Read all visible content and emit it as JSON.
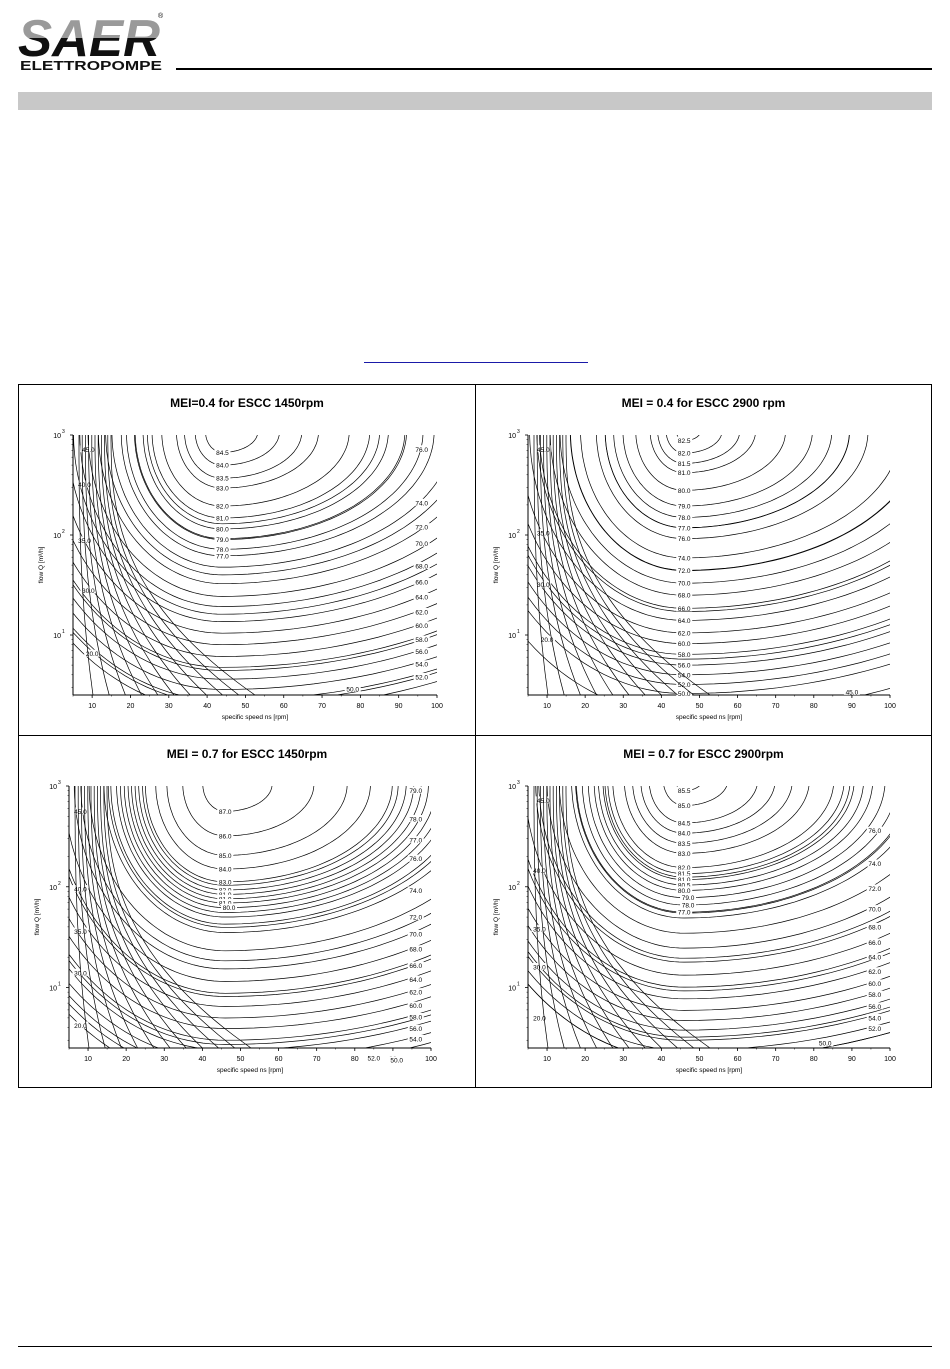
{
  "brand": {
    "name": "SAER",
    "sub": "ELETTROPOMPE",
    "reg_mark": "®",
    "colors": {
      "logo_top": "#9a9a9a",
      "logo_bottom": "#101010",
      "band": "#c8c8c8"
    }
  },
  "chart_data": [
    {
      "type": "line",
      "title": "MEI=0.4 for ESCC 1450rpm",
      "xlabel": "specific speed ns [rpm]",
      "ylabel": "flow Q [m³/h]",
      "xlim": [
        5,
        100
      ],
      "ylim_log10": [
        0.4,
        3.0
      ],
      "x_ticks": [
        "10",
        "20",
        "30",
        "40",
        "50",
        "60",
        "70",
        "80",
        "90",
        "100"
      ],
      "y_ticks": [
        {
          "base": "10",
          "exp": "1",
          "value": 10
        },
        {
          "base": "10",
          "exp": "2",
          "value": 100
        },
        {
          "base": "10",
          "exp": "3",
          "value": 1000
        }
      ],
      "optimum": {
        "ns": 44,
        "q": 1080
      },
      "contours": [
        {
          "label": "84.5",
          "ns": 44,
          "q": 670
        },
        {
          "label": "84.0",
          "ns": 44,
          "q": 500
        },
        {
          "label": "83.5",
          "ns": 44,
          "q": 370
        },
        {
          "label": "83.0",
          "ns": 44,
          "q": 295
        },
        {
          "label": "82.0",
          "ns": 44,
          "q": 195
        },
        {
          "label": "81.0",
          "ns": 44,
          "q": 148
        },
        {
          "label": "80.0",
          "ns": 44,
          "q": 115
        },
        {
          "label": "79.0",
          "ns": 44,
          "q": 90
        },
        {
          "label": "78.0",
          "ns": 44,
          "q": 72
        },
        {
          "label": "77.0",
          "ns": 44,
          "q": 62
        },
        {
          "label": "76.0",
          "ns": 96,
          "q": 720
        },
        {
          "label": "74.0",
          "ns": 96,
          "q": 210
        },
        {
          "label": "72.0",
          "ns": 96,
          "q": 120
        },
        {
          "label": "70.0",
          "ns": 96,
          "q": 82
        },
        {
          "label": "68.0",
          "ns": 96,
          "q": 49
        },
        {
          "label": "66.0",
          "ns": 96,
          "q": 34
        },
        {
          "label": "64.0",
          "ns": 96,
          "q": 24
        },
        {
          "label": "62.0",
          "ns": 96,
          "q": 17
        },
        {
          "label": "60.0",
          "ns": 96,
          "q": 12.5
        },
        {
          "label": "58.0",
          "ns": 96,
          "q": 9
        },
        {
          "label": "56.0",
          "ns": 96,
          "q": 6.8
        },
        {
          "label": "54.0",
          "ns": 96,
          "q": 5.1
        },
        {
          "label": "52.0",
          "ns": 96,
          "q": 3.8
        },
        {
          "label": "50.0",
          "ns": 78,
          "q": 2.9
        },
        {
          "label": "45.0",
          "ns": 9,
          "q": 720
        },
        {
          "label": "40.0",
          "ns": 8,
          "q": 320
        },
        {
          "label": "35.0",
          "ns": 8,
          "q": 88
        },
        {
          "label": "30.0",
          "ns": 9,
          "q": 28
        },
        {
          "label": "20.0",
          "ns": 10,
          "q": 6.5
        }
      ]
    },
    {
      "type": "line",
      "title": "MEI = 0.4 for ESCC 2900 rpm",
      "xlabel": "specific speed ns [rpm]",
      "ylabel": "flow Q [m³/h]",
      "xlim": [
        5,
        100
      ],
      "ylim_log10": [
        0.4,
        3.0
      ],
      "x_ticks": [
        "10",
        "20",
        "30",
        "40",
        "50",
        "60",
        "70",
        "80",
        "90",
        "100"
      ],
      "y_ticks": [
        {
          "base": "10",
          "exp": "1",
          "value": 10
        },
        {
          "base": "10",
          "exp": "2",
          "value": 100
        },
        {
          "base": "10",
          "exp": "3",
          "value": 1000
        }
      ],
      "optimum": {
        "ns": 46,
        "q": 1100
      },
      "contours": [
        {
          "label": "82.5",
          "ns": 46,
          "q": 880
        },
        {
          "label": "82.0",
          "ns": 46,
          "q": 660
        },
        {
          "label": "81.5",
          "ns": 46,
          "q": 520
        },
        {
          "label": "81.0",
          "ns": 46,
          "q": 420
        },
        {
          "label": "80.0",
          "ns": 46,
          "q": 280
        },
        {
          "label": "79.0",
          "ns": 46,
          "q": 195
        },
        {
          "label": "78.0",
          "ns": 46,
          "q": 150
        },
        {
          "label": "77.0",
          "ns": 46,
          "q": 118
        },
        {
          "label": "76.0",
          "ns": 46,
          "q": 92
        },
        {
          "label": "74.0",
          "ns": 46,
          "q": 59
        },
        {
          "label": "72.0",
          "ns": 46,
          "q": 44
        },
        {
          "label": "70.0",
          "ns": 46,
          "q": 33
        },
        {
          "label": "68.0",
          "ns": 46,
          "q": 25
        },
        {
          "label": "66.0",
          "ns": 46,
          "q": 18.5
        },
        {
          "label": "64.0",
          "ns": 46,
          "q": 14
        },
        {
          "label": "62.0",
          "ns": 46,
          "q": 10.5
        },
        {
          "label": "60.0",
          "ns": 46,
          "q": 8.2
        },
        {
          "label": "58.0",
          "ns": 46,
          "q": 6.4
        },
        {
          "label": "56.0",
          "ns": 46,
          "q": 5
        },
        {
          "label": "54.0",
          "ns": 46,
          "q": 4
        },
        {
          "label": "52.0",
          "ns": 46,
          "q": 3.2
        },
        {
          "label": "50.0",
          "ns": 46,
          "q": 2.6
        },
        {
          "label": "45.0",
          "ns": 90,
          "q": 2.7
        },
        {
          "label": "45.0",
          "ns": 9,
          "q": 720
        },
        {
          "label": "35.0",
          "ns": 9,
          "q": 105
        },
        {
          "label": "30.0",
          "ns": 9,
          "q": 32
        },
        {
          "label": "20.0",
          "ns": 10,
          "q": 9
        }
      ]
    },
    {
      "type": "line",
      "title": "MEI = 0.7 for ESCC 1450rpm",
      "xlabel": "specific speed ns [rpm]",
      "ylabel": "flow Q [m³/h]",
      "xlim": [
        5,
        100
      ],
      "ylim_log10": [
        0.4,
        3.0
      ],
      "x_ticks": [
        "10",
        "20",
        "30",
        "40",
        "50",
        "60",
        "70",
        "80",
        "90",
        "100"
      ],
      "y_ticks": [
        {
          "base": "10",
          "exp": "1",
          "value": 10
        },
        {
          "base": "10",
          "exp": "2",
          "value": 100
        },
        {
          "base": "10",
          "exp": "3",
          "value": 1000
        }
      ],
      "optimum": {
        "ns": 46,
        "q": 1050
      },
      "contours": [
        {
          "label": "87.0",
          "ns": 46,
          "q": 560
        },
        {
          "label": "86.0",
          "ns": 46,
          "q": 320
        },
        {
          "label": "85.0",
          "ns": 46,
          "q": 205
        },
        {
          "label": "84.0",
          "ns": 46,
          "q": 150
        },
        {
          "label": "83.0",
          "ns": 46,
          "q": 112
        },
        {
          "label": "82.0",
          "ns": 46,
          "q": 93
        },
        {
          "label": "81.0",
          "ns": 46,
          "q": 84
        },
        {
          "label": "81.0",
          "ns": 46,
          "q": 76
        },
        {
          "label": "81.0",
          "ns": 46,
          "q": 69
        },
        {
          "label": "80.0",
          "ns": 47,
          "q": 62
        },
        {
          "label": "79.0",
          "ns": 96,
          "q": 900
        },
        {
          "label": "78.0",
          "ns": 96,
          "q": 470
        },
        {
          "label": "77.0",
          "ns": 96,
          "q": 290
        },
        {
          "label": "76.0",
          "ns": 96,
          "q": 190
        },
        {
          "label": "74.0",
          "ns": 96,
          "q": 92
        },
        {
          "label": "72.0",
          "ns": 96,
          "q": 50
        },
        {
          "label": "70.0",
          "ns": 96,
          "q": 34
        },
        {
          "label": "68.0",
          "ns": 96,
          "q": 24
        },
        {
          "label": "66.0",
          "ns": 96,
          "q": 16.5
        },
        {
          "label": "64.0",
          "ns": 96,
          "q": 12
        },
        {
          "label": "62.0",
          "ns": 96,
          "q": 9
        },
        {
          "label": "60.0",
          "ns": 96,
          "q": 6.6
        },
        {
          "label": "58.0",
          "ns": 96,
          "q": 5.1
        },
        {
          "label": "56.0",
          "ns": 96,
          "q": 3.9
        },
        {
          "label": "54.0",
          "ns": 96,
          "q": 3.1
        },
        {
          "label": "52.0",
          "ns": 85,
          "q": 2.0
        },
        {
          "label": "50.0",
          "ns": 91,
          "q": 1.9
        },
        {
          "label": "45.0",
          "ns": 8,
          "q": 560
        },
        {
          "label": "40.0",
          "ns": 8,
          "q": 95
        },
        {
          "label": "35.0",
          "ns": 8,
          "q": 36
        },
        {
          "label": "30.0",
          "ns": 8,
          "q": 14
        },
        {
          "label": "20.0",
          "ns": 8,
          "q": 4.2
        }
      ]
    },
    {
      "type": "line",
      "title": "MEI = 0.7 for ESCC 2900rpm",
      "xlabel": "specific speed ns [rpm]",
      "ylabel": "flow Q [m³/h]",
      "xlim": [
        5,
        100
      ],
      "ylim_log10": [
        0.4,
        3.0
      ],
      "x_ticks": [
        "10",
        "20",
        "30",
        "40",
        "50",
        "60",
        "70",
        "80",
        "90",
        "100"
      ],
      "y_ticks": [
        {
          "base": "10",
          "exp": "1",
          "value": 10
        },
        {
          "base": "10",
          "exp": "2",
          "value": 100
        },
        {
          "base": "10",
          "exp": "3",
          "value": 1000
        }
      ],
      "optimum": {
        "ns": 46,
        "q": 1150
      },
      "contours": [
        {
          "label": "85.5",
          "ns": 46,
          "q": 900
        },
        {
          "label": "85.0",
          "ns": 46,
          "q": 640
        },
        {
          "label": "84.5",
          "ns": 46,
          "q": 430
        },
        {
          "label": "84.0",
          "ns": 46,
          "q": 340
        },
        {
          "label": "83.5",
          "ns": 46,
          "q": 270
        },
        {
          "label": "83.0",
          "ns": 46,
          "q": 215
        },
        {
          "label": "82.0",
          "ns": 46,
          "q": 155
        },
        {
          "label": "81.5",
          "ns": 46,
          "q": 135
        },
        {
          "label": "81.0",
          "ns": 46,
          "q": 118
        },
        {
          "label": "80.5",
          "ns": 46,
          "q": 104
        },
        {
          "label": "80.0",
          "ns": 46,
          "q": 92
        },
        {
          "label": "79.0",
          "ns": 47,
          "q": 78
        },
        {
          "label": "78.0",
          "ns": 47,
          "q": 66
        },
        {
          "label": "77.0",
          "ns": 46,
          "q": 56
        },
        {
          "label": "76.0",
          "ns": 96,
          "q": 360
        },
        {
          "label": "74.0",
          "ns": 96,
          "q": 170
        },
        {
          "label": "72.0",
          "ns": 96,
          "q": 96
        },
        {
          "label": "70.0",
          "ns": 96,
          "q": 60
        },
        {
          "label": "68.0",
          "ns": 96,
          "q": 40
        },
        {
          "label": "66.0",
          "ns": 96,
          "q": 28
        },
        {
          "label": "64.0",
          "ns": 96,
          "q": 20
        },
        {
          "label": "62.0",
          "ns": 96,
          "q": 14.5
        },
        {
          "label": "60.0",
          "ns": 96,
          "q": 11
        },
        {
          "label": "58.0",
          "ns": 96,
          "q": 8.5
        },
        {
          "label": "56.0",
          "ns": 96,
          "q": 6.5
        },
        {
          "label": "54.0",
          "ns": 96,
          "q": 5
        },
        {
          "label": "52.0",
          "ns": 96,
          "q": 3.9
        },
        {
          "label": "50.0",
          "ns": 83,
          "q": 2.8
        },
        {
          "label": "45.0",
          "ns": 9,
          "q": 720
        },
        {
          "label": "40.0",
          "ns": 8,
          "q": 145
        },
        {
          "label": "35.0",
          "ns": 8,
          "q": 38
        },
        {
          "label": "30.0",
          "ns": 8,
          "q": 16
        },
        {
          "label": "20.0",
          "ns": 8,
          "q": 5
        }
      ]
    }
  ]
}
